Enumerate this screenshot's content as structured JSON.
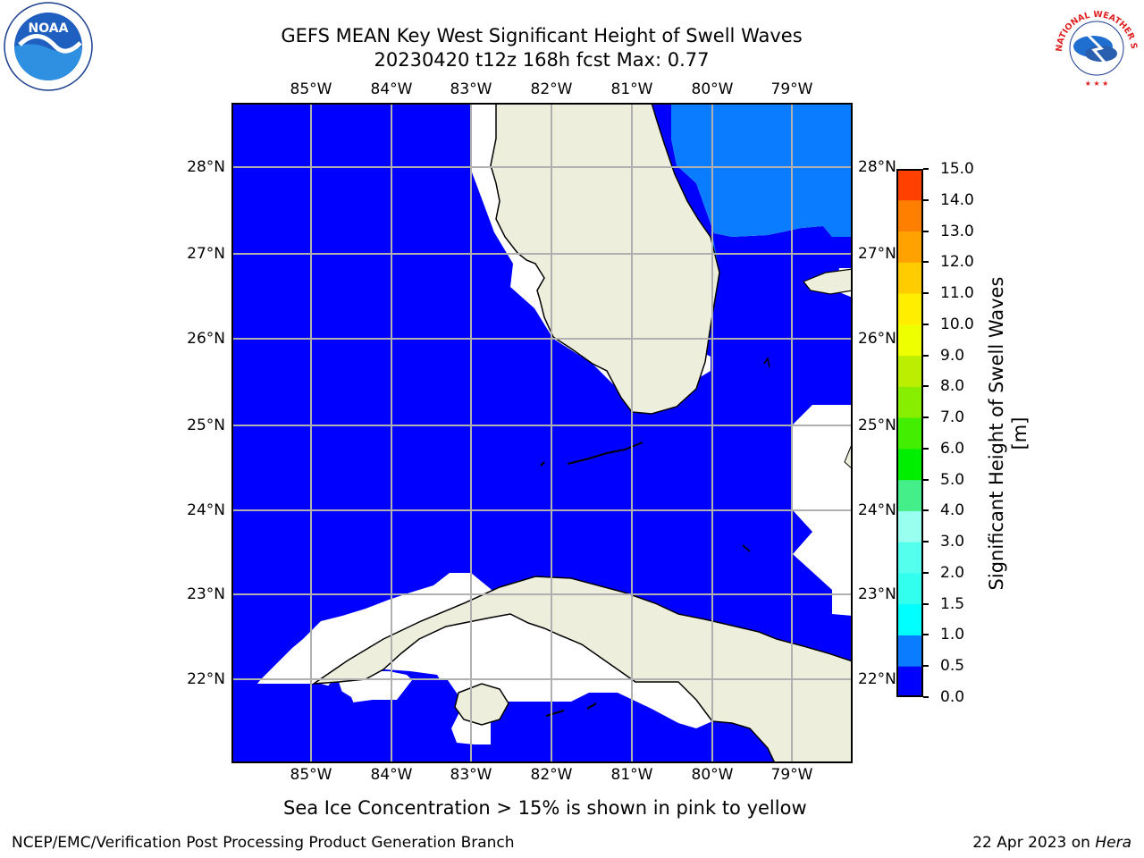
{
  "title": {
    "line1": "GEFS MEAN Key West Significant Height of Swell Waves",
    "line2": "20230420 t12z 168h fcst   Max: 0.77"
  },
  "map": {
    "lon_ticks": [
      "85°W",
      "84°W",
      "83°W",
      "82°W",
      "81°W",
      "80°W",
      "79°W"
    ],
    "lat_ticks": [
      "28°N",
      "27°N",
      "26°N",
      "25°N",
      "24°N",
      "23°N",
      "22°N"
    ],
    "colors": {
      "ocean_low": "#0000ff",
      "ocean_mid": "#0a7cff",
      "land": "#eeeedd",
      "grid": "#b0b0b0"
    }
  },
  "colorbar": {
    "label": "Significant Height of Swell Waves [m]",
    "ticks": [
      "0.0",
      "0.5",
      "1.0",
      "1.5",
      "2.0",
      "3.0",
      "4.0",
      "5.0",
      "6.0",
      "7.0",
      "8.0",
      "9.0",
      "10.0",
      "11.0",
      "12.0",
      "13.0",
      "14.0",
      "15.0"
    ],
    "colors": [
      "#0000ff",
      "#0a7cff",
      "#00ffff",
      "#33ffee",
      "#55ffee",
      "#99ffee",
      "#44ee88",
      "#00ee00",
      "#44ee00",
      "#88ee00",
      "#bbee00",
      "#eeff00",
      "#ffee00",
      "#ffcc00",
      "#ffa200",
      "#ff8000",
      "#ff4000",
      "#ff0000"
    ]
  },
  "caption": "Sea Ice Concentration > 15% is shown in pink to yellow",
  "footer": {
    "left": "NCEP/EMC/Verification Post Processing Product Generation Branch",
    "right_date": "22 Apr 2023 on ",
    "right_host": "Hera"
  },
  "logos": {
    "noaa_text": "NOAA",
    "nws_text": "NATIONAL WEATHER SERVICE"
  }
}
